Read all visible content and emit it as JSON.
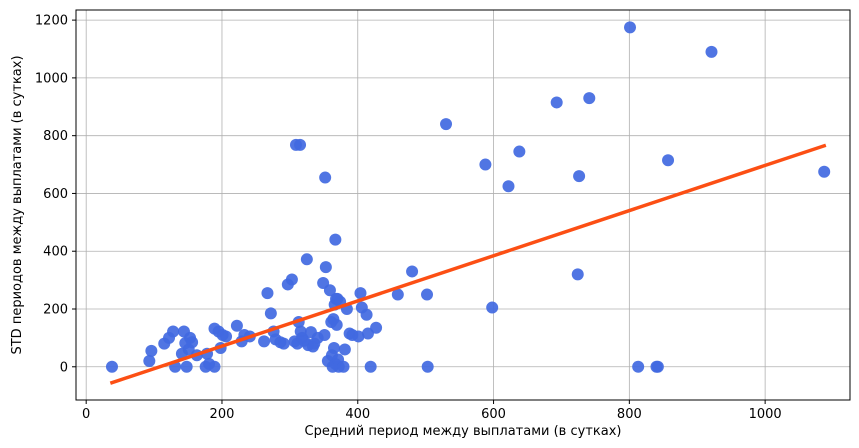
{
  "chart_data": {
    "type": "scatter",
    "title": "",
    "xlabel": "Средний период между выплатами (в сутках)",
    "ylabel": "STD периодов между выплатами (в сутках)",
    "xlim": [
      -15,
      1125
    ],
    "ylim": [
      -115,
      1235
    ],
    "xticks": [
      0,
      200,
      400,
      600,
      800,
      1000
    ],
    "yticks": [
      0,
      200,
      400,
      600,
      800,
      1000,
      1200
    ],
    "x_tick_labels": [
      "0",
      "200",
      "400",
      "600",
      "800",
      "1000"
    ],
    "y_tick_labels": [
      "0",
      "200",
      "400",
      "600",
      "800",
      "1000",
      "1200"
    ],
    "grid": true,
    "point_color": "#4169e1",
    "line_color": "#fc4f14",
    "trend_line": {
      "x": [
        38,
        1087
      ],
      "y": [
        -55,
        765
      ]
    },
    "points": [
      {
        "x": 38,
        "y": 0
      },
      {
        "x": 93,
        "y": 20
      },
      {
        "x": 96,
        "y": 55
      },
      {
        "x": 115,
        "y": 80
      },
      {
        "x": 122,
        "y": 100
      },
      {
        "x": 128,
        "y": 122
      },
      {
        "x": 131,
        "y": 0
      },
      {
        "x": 141,
        "y": 45
      },
      {
        "x": 144,
        "y": 122
      },
      {
        "x": 146,
        "y": 82
      },
      {
        "x": 148,
        "y": 0
      },
      {
        "x": 151,
        "y": 60
      },
      {
        "x": 153,
        "y": 100
      },
      {
        "x": 156,
        "y": 85
      },
      {
        "x": 163,
        "y": 40
      },
      {
        "x": 176,
        "y": 0
      },
      {
        "x": 178,
        "y": 45
      },
      {
        "x": 181,
        "y": 10
      },
      {
        "x": 189,
        "y": 0
      },
      {
        "x": 189,
        "y": 132
      },
      {
        "x": 195,
        "y": 122
      },
      {
        "x": 198,
        "y": 65
      },
      {
        "x": 201,
        "y": 110
      },
      {
        "x": 206,
        "y": 105
      },
      {
        "x": 222,
        "y": 142
      },
      {
        "x": 229,
        "y": 88
      },
      {
        "x": 233,
        "y": 110
      },
      {
        "x": 241,
        "y": 105
      },
      {
        "x": 262,
        "y": 88
      },
      {
        "x": 267,
        "y": 255
      },
      {
        "x": 272,
        "y": 185
      },
      {
        "x": 276,
        "y": 122
      },
      {
        "x": 279,
        "y": 95
      },
      {
        "x": 286,
        "y": 85
      },
      {
        "x": 291,
        "y": 80
      },
      {
        "x": 297,
        "y": 285
      },
      {
        "x": 303,
        "y": 302
      },
      {
        "x": 307,
        "y": 88
      },
      {
        "x": 309,
        "y": 768
      },
      {
        "x": 311,
        "y": 80
      },
      {
        "x": 313,
        "y": 155
      },
      {
        "x": 315,
        "y": 768
      },
      {
        "x": 316,
        "y": 122
      },
      {
        "x": 318,
        "y": 100
      },
      {
        "x": 321,
        "y": 90
      },
      {
        "x": 325,
        "y": 372
      },
      {
        "x": 327,
        "y": 75
      },
      {
        "x": 331,
        "y": 120
      },
      {
        "x": 334,
        "y": 70
      },
      {
        "x": 336,
        "y": 80
      },
      {
        "x": 341,
        "y": 100
      },
      {
        "x": 349,
        "y": 290
      },
      {
        "x": 351,
        "y": 110
      },
      {
        "x": 352,
        "y": 655
      },
      {
        "x": 353,
        "y": 345
      },
      {
        "x": 356,
        "y": 20
      },
      {
        "x": 359,
        "y": 265
      },
      {
        "x": 361,
        "y": 155
      },
      {
        "x": 362,
        "y": 40
      },
      {
        "x": 363,
        "y": 0
      },
      {
        "x": 364,
        "y": 165
      },
      {
        "x": 365,
        "y": 65
      },
      {
        "x": 366,
        "y": 215
      },
      {
        "x": 367,
        "y": 10
      },
      {
        "x": 367,
        "y": 440
      },
      {
        "x": 368,
        "y": 235
      },
      {
        "x": 369,
        "y": 145
      },
      {
        "x": 370,
        "y": 235
      },
      {
        "x": 371,
        "y": 25
      },
      {
        "x": 372,
        "y": 0
      },
      {
        "x": 374,
        "y": 225
      },
      {
        "x": 379,
        "y": 0
      },
      {
        "x": 381,
        "y": 60
      },
      {
        "x": 384,
        "y": 200
      },
      {
        "x": 388,
        "y": 115
      },
      {
        "x": 392,
        "y": 110
      },
      {
        "x": 401,
        "y": 105
      },
      {
        "x": 404,
        "y": 255
      },
      {
        "x": 406,
        "y": 205
      },
      {
        "x": 413,
        "y": 180
      },
      {
        "x": 415,
        "y": 115
      },
      {
        "x": 419,
        "y": 0
      },
      {
        "x": 427,
        "y": 135
      },
      {
        "x": 459,
        "y": 250
      },
      {
        "x": 480,
        "y": 330
      },
      {
        "x": 502,
        "y": 250
      },
      {
        "x": 503,
        "y": 0
      },
      {
        "x": 530,
        "y": 840
      },
      {
        "x": 588,
        "y": 700
      },
      {
        "x": 598,
        "y": 205
      },
      {
        "x": 622,
        "y": 625
      },
      {
        "x": 638,
        "y": 745
      },
      {
        "x": 693,
        "y": 915
      },
      {
        "x": 724,
        "y": 320
      },
      {
        "x": 726,
        "y": 660
      },
      {
        "x": 741,
        "y": 930
      },
      {
        "x": 801,
        "y": 1175
      },
      {
        "x": 813,
        "y": 0
      },
      {
        "x": 840,
        "y": 0
      },
      {
        "x": 842,
        "y": 0
      },
      {
        "x": 857,
        "y": 715
      },
      {
        "x": 921,
        "y": 1090
      },
      {
        "x": 1087,
        "y": 675
      }
    ]
  }
}
